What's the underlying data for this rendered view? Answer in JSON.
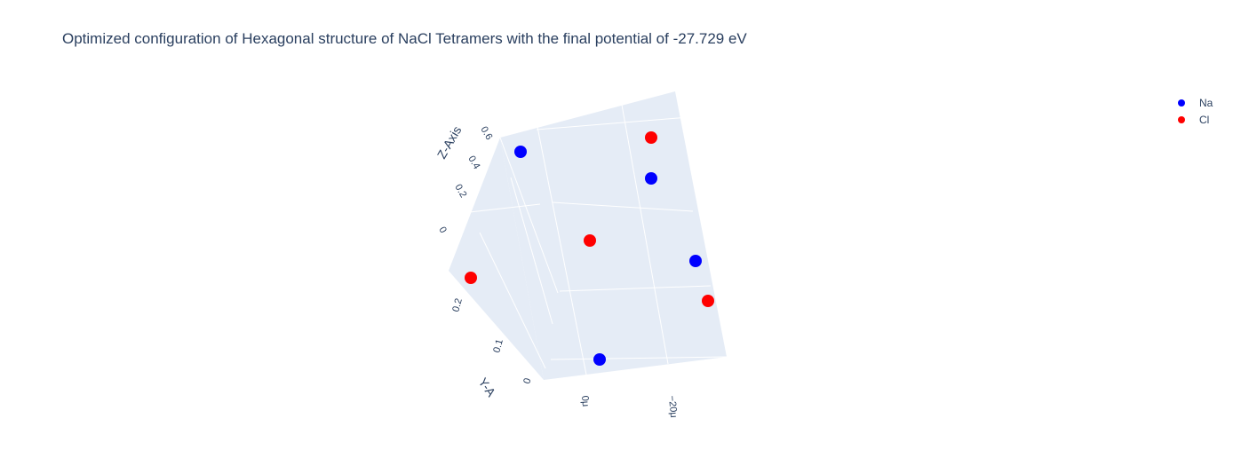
{
  "chart_data": {
    "type": "scatter",
    "title": "Optimized configuration of Hexagonal structure of NaCl Tetramers with the final potential of -27.729 eV",
    "zlabel": "Z-Axis",
    "ylabel": "Y-A",
    "z_ticks": [
      "0",
      "0.2",
      "0.4",
      "0.6"
    ],
    "y_ticks": [
      "0",
      "0.1",
      "0.2"
    ],
    "x_ticks": [
      "0μ",
      "−20μ"
    ],
    "legend_position": "top-right",
    "series": [
      {
        "name": "Na",
        "color": "#0000ff"
      },
      {
        "name": "Cl",
        "color": "#ff0000"
      }
    ],
    "points": [
      {
        "series": "Na"
      },
      {
        "series": "Cl"
      },
      {
        "series": "Na"
      },
      {
        "series": "Cl"
      },
      {
        "series": "Na"
      },
      {
        "series": "Cl"
      },
      {
        "series": "Cl"
      },
      {
        "series": "Na"
      }
    ]
  }
}
